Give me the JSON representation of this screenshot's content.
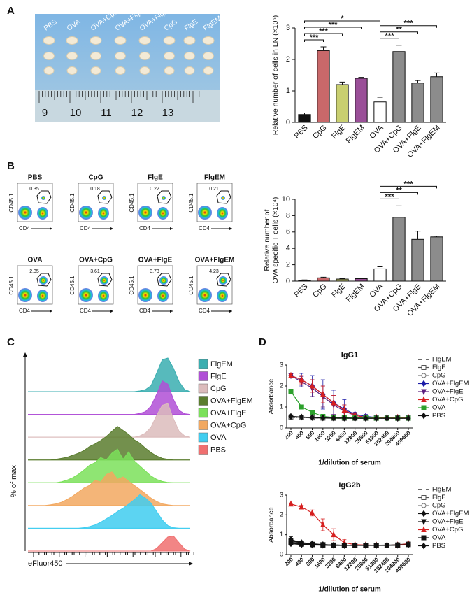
{
  "panel_labels": [
    "A",
    "B",
    "C",
    "D"
  ],
  "photo": {
    "labels": [
      "PBS",
      "OVA",
      "OVA+CpG",
      "OVA+FlgE",
      "OVA+FlgEM",
      "CpG",
      "FlgE",
      "FlgEM"
    ],
    "ruler": [
      "9",
      "10",
      "11",
      "12",
      "13"
    ]
  },
  "flow": {
    "y_label": "CD45.1",
    "x_label": "CD4",
    "plots": [
      {
        "title": "PBS",
        "percent": 0.35
      },
      {
        "title": "CpG",
        "percent": 0.18
      },
      {
        "title": "FlgE",
        "percent": 0.22
      },
      {
        "title": "FlgEM",
        "percent": 0.21
      },
      {
        "title": "OVA",
        "percent": 2.35
      },
      {
        "title": "OVA+CpG",
        "percent": 3.61
      },
      {
        "title": "OVA+FlgE",
        "percent": 3.73
      },
      {
        "title": "OVA+FlgEM",
        "percent": 4.23
      }
    ]
  },
  "chart_data": [
    {
      "type": "bar",
      "y_label": [
        "Relative number of cells in LN (×10⁶)"
      ],
      "categories": [
        "PBS",
        "CpG",
        "FlgE",
        "FlgEM",
        "OVA",
        "OVA+CpG",
        "OVA+FlgE",
        "OVA+FlgEM"
      ],
      "values": [
        0.25,
        2.28,
        1.2,
        1.4,
        0.65,
        2.25,
        1.25,
        1.45
      ],
      "errors": [
        0.05,
        0.12,
        0.08,
        0.03,
        0.15,
        0.2,
        0.08,
        0.12
      ],
      "colors": [
        "#111111",
        "#c9686a",
        "#c9cf70",
        "#9a4f98",
        "#ffffff",
        "#8c8c8c",
        "#8c8c8c",
        "#8c8c8c"
      ],
      "ylim": [
        0,
        3
      ],
      "yticks": [
        0,
        1,
        2,
        3
      ],
      "comparisons": [
        {
          "from": 0,
          "to": 1,
          "label": "***"
        },
        {
          "from": 0,
          "to": 2,
          "label": "***"
        },
        {
          "from": 0,
          "to": 3,
          "label": "***"
        },
        {
          "from": 0,
          "to": 4,
          "label": "*"
        },
        {
          "from": 4,
          "to": 5,
          "label": "***"
        },
        {
          "from": 4,
          "to": 6,
          "label": "**"
        },
        {
          "from": 4,
          "to": 7,
          "label": "***"
        }
      ]
    },
    {
      "type": "bar",
      "y_label": [
        "Relative number of",
        "OVA specific T cells (×10⁴)"
      ],
      "categories": [
        "PBS",
        "CpG",
        "FlgE",
        "FlgEM",
        "OVA",
        "OVA+CpG",
        "OVA+FlgE",
        "OVA+FlgEM"
      ],
      "values": [
        0.1,
        0.4,
        0.25,
        0.3,
        1.5,
        7.8,
        5.1,
        5.4
      ],
      "errors": [
        0.05,
        0.08,
        0.05,
        0.05,
        0.25,
        1.4,
        1.0,
        0.1
      ],
      "colors": [
        "#111111",
        "#c9686a",
        "#c9cf70",
        "#9a4f98",
        "#ffffff",
        "#8c8c8c",
        "#8c8c8c",
        "#8c8c8c"
      ],
      "ylim": [
        0,
        10
      ],
      "yticks": [
        0,
        2,
        4,
        6,
        8,
        10
      ],
      "comparisons": [
        {
          "from": 4,
          "to": 5,
          "label": "***"
        },
        {
          "from": 4,
          "to": 6,
          "label": "**"
        },
        {
          "from": 4,
          "to": 7,
          "label": "***"
        }
      ]
    },
    {
      "type": "density",
      "y_label": "% of max",
      "x_label": "eFluor450",
      "ylim": [
        0,
        100
      ],
      "series": [
        {
          "name": "FlgEM",
          "color": "#3aaeb0",
          "values": [
            0,
            0,
            0,
            0,
            0,
            0,
            0,
            0,
            0,
            0,
            0,
            0,
            0,
            0,
            0,
            0,
            0,
            0,
            0,
            0,
            2,
            6,
            18,
            55,
            95,
            100,
            70,
            30,
            6,
            0
          ]
        },
        {
          "name": "FlgE",
          "color": "#b04fd6",
          "values": [
            0,
            0,
            0,
            0,
            0,
            0,
            0,
            0,
            0,
            0,
            0,
            0,
            0,
            0,
            0,
            0,
            0,
            0,
            0,
            0,
            3,
            8,
            25,
            60,
            100,
            90,
            45,
            12,
            2,
            0
          ]
        },
        {
          "name": "CpG",
          "color": "#dcbcbc",
          "values": [
            0,
            0,
            0,
            0,
            0,
            0,
            0,
            0,
            0,
            0,
            0,
            0,
            0,
            0,
            0,
            0,
            0,
            0,
            0,
            0,
            4,
            12,
            30,
            65,
            95,
            100,
            55,
            18,
            4,
            0
          ]
        },
        {
          "name": "OVA+FlgEM",
          "color": "#5a7d2e",
          "values": [
            0,
            0,
            0,
            0,
            0,
            2,
            5,
            8,
            14,
            20,
            28,
            40,
            48,
            58,
            70,
            85,
            100,
            88,
            76,
            60,
            50,
            35,
            22,
            12,
            5,
            2,
            0,
            0,
            0,
            0
          ]
        },
        {
          "name": "OVA+FlgE",
          "color": "#7be05a",
          "values": [
            0,
            0,
            0,
            0,
            0,
            0,
            3,
            8,
            15,
            25,
            38,
            52,
            60,
            75,
            68,
            88,
            100,
            70,
            92,
            65,
            50,
            35,
            20,
            10,
            4,
            1,
            0,
            0,
            0,
            0
          ]
        },
        {
          "name": "OVA+CpG",
          "color": "#f2a860",
          "values": [
            0,
            0,
            0,
            0,
            2,
            5,
            10,
            18,
            28,
            40,
            52,
            60,
            75,
            70,
            92,
            100,
            78,
            85,
            72,
            60,
            48,
            35,
            22,
            12,
            5,
            2,
            0,
            0,
            0,
            0
          ]
        },
        {
          "name": "OVA",
          "color": "#3fcdf0",
          "values": [
            0,
            0,
            0,
            0,
            0,
            0,
            0,
            0,
            0,
            0,
            2,
            5,
            10,
            18,
            28,
            38,
            50,
            60,
            72,
            85,
            100,
            90,
            75,
            50,
            25,
            8,
            2,
            0,
            0,
            0
          ]
        },
        {
          "name": "PBS",
          "color": "#f07070",
          "values": [
            0,
            0,
            0,
            0,
            0,
            0,
            0,
            0,
            0,
            0,
            0,
            0,
            0,
            0,
            0,
            0,
            0,
            0,
            0,
            0,
            0,
            0,
            0,
            8,
            25,
            42,
            45,
            25,
            6,
            0
          ]
        }
      ]
    },
    {
      "type": "line",
      "title": "IgG1",
      "y_label": "Absorbance",
      "x_label": "1/dilution of serum",
      "xscale": "log",
      "x": [
        200,
        400,
        800,
        1600,
        3200,
        6400,
        12800,
        25600,
        51200,
        102400,
        204800,
        409600
      ],
      "xlim": [
        200,
        409600
      ],
      "xticks": [
        200,
        400,
        800,
        1600,
        3200,
        6400,
        12800,
        25600,
        51200,
        102400,
        204800,
        409600
      ],
      "ylim": [
        0,
        3
      ],
      "yticks": [
        0,
        1,
        2,
        3
      ],
      "series": [
        {
          "name": "FlgEM",
          "color": "#111111",
          "marker": "none",
          "dash": "dashdot",
          "values": [
            0.5,
            0.5,
            0.48,
            0.47,
            0.47,
            0.46,
            0.46,
            0.46,
            0.46,
            0.46,
            0.46,
            0.46
          ]
        },
        {
          "name": "FlgE",
          "color": "#555555",
          "marker": "square-open",
          "values": [
            0.52,
            0.5,
            0.48,
            0.47,
            0.46,
            0.46,
            0.46,
            0.46,
            0.46,
            0.46,
            0.46,
            0.46
          ]
        },
        {
          "name": "CpG",
          "color": "#777777",
          "marker": "circle-open",
          "values": [
            0.55,
            0.52,
            0.5,
            0.48,
            0.47,
            0.46,
            0.46,
            0.46,
            0.46,
            0.46,
            0.46,
            0.46
          ]
        },
        {
          "name": "OVA+FlgEM",
          "color": "#1c1ca8",
          "marker": "diamond",
          "values": [
            2.5,
            2.3,
            2.0,
            1.6,
            1.2,
            0.9,
            0.65,
            0.55,
            0.5,
            0.5,
            0.5,
            0.5
          ],
          "errors": [
            0.05,
            0.3,
            0.5,
            0.7,
            0.6,
            0.45,
            0.2,
            0.1,
            0.05,
            0.05,
            0.05,
            0.05
          ]
        },
        {
          "name": "OVA+FlgE",
          "color": "#5b1f7e",
          "marker": "triangle-down",
          "values": [
            2.5,
            2.2,
            1.9,
            1.5,
            1.1,
            0.8,
            0.6,
            0.5,
            0.5,
            0.5,
            0.5,
            0.5
          ],
          "errors": [
            0.05,
            0.25,
            0.4,
            0.5,
            0.45,
            0.3,
            0.15,
            0.05,
            0.05,
            0.05,
            0.05,
            0.05
          ]
        },
        {
          "name": "OVA+CpG",
          "color": "#d62020",
          "marker": "triangle",
          "values": [
            2.5,
            2.3,
            2.0,
            1.6,
            1.2,
            0.85,
            0.6,
            0.5,
            0.5,
            0.5,
            0.5,
            0.5
          ],
          "errors": [
            0.05,
            0.2,
            0.3,
            0.4,
            0.35,
            0.25,
            0.1,
            0.05,
            0.05,
            0.05,
            0.05,
            0.05
          ]
        },
        {
          "name": "OVA",
          "color": "#2ca02c",
          "marker": "square",
          "values": [
            1.75,
            1.0,
            0.75,
            0.55,
            0.5,
            0.5,
            0.48,
            0.48,
            0.47,
            0.47,
            0.47,
            0.47
          ],
          "errors": [
            0.1,
            0.1,
            0.08,
            0.05,
            0.05,
            0.05,
            0.05,
            0.05,
            0.05,
            0.05,
            0.05,
            0.05
          ]
        },
        {
          "name": "PBS",
          "color": "#111111",
          "marker": "diamond",
          "values": [
            0.55,
            0.52,
            0.5,
            0.48,
            0.47,
            0.47,
            0.46,
            0.46,
            0.46,
            0.46,
            0.46,
            0.46
          ]
        }
      ]
    },
    {
      "type": "line",
      "title": "IgG2b",
      "y_label": "Absorbance",
      "x_label": "1/dilution of serum",
      "xscale": "log",
      "x": [
        200,
        400,
        800,
        1600,
        3200,
        6400,
        12800,
        25600,
        51200,
        102400,
        204800,
        409600
      ],
      "xlim": [
        200,
        409600
      ],
      "xticks": [
        200,
        400,
        800,
        1600,
        3200,
        6400,
        12800,
        25600,
        51200,
        102400,
        204800,
        409600
      ],
      "ylim": [
        0,
        3
      ],
      "yticks": [
        0,
        1,
        2,
        3
      ],
      "series": [
        {
          "name": "FlgEM",
          "color": "#111111",
          "marker": "none",
          "dash": "dashdot",
          "values": [
            0.6,
            0.55,
            0.52,
            0.5,
            0.48,
            0.47,
            0.47,
            0.47,
            0.47,
            0.47,
            0.48,
            0.5
          ]
        },
        {
          "name": "FlgE",
          "color": "#555555",
          "marker": "square-open",
          "values": [
            0.65,
            0.55,
            0.5,
            0.48,
            0.47,
            0.47,
            0.47,
            0.47,
            0.47,
            0.47,
            0.48,
            0.52
          ]
        },
        {
          "name": "CpG",
          "color": "#777777",
          "marker": "circle-open",
          "values": [
            0.7,
            0.6,
            0.52,
            0.5,
            0.48,
            0.47,
            0.47,
            0.47,
            0.47,
            0.48,
            0.5,
            0.55
          ]
        },
        {
          "name": "OVA+FlgEM",
          "color": "#111111",
          "marker": "diamond",
          "values": [
            0.75,
            0.6,
            0.55,
            0.5,
            0.48,
            0.47,
            0.47,
            0.47,
            0.47,
            0.47,
            0.48,
            0.5
          ],
          "errors": [
            0.15,
            0.08,
            0.05,
            0.05,
            0.05,
            0.05,
            0.05,
            0.05,
            0.05,
            0.05,
            0.05,
            0.05
          ]
        },
        {
          "name": "OVA+FlgE",
          "color": "#111111",
          "marker": "triangle-down",
          "values": [
            0.7,
            0.58,
            0.52,
            0.5,
            0.48,
            0.47,
            0.47,
            0.47,
            0.47,
            0.47,
            0.48,
            0.52
          ]
        },
        {
          "name": "OVA+CpG",
          "color": "#d62020",
          "marker": "triangle",
          "values": [
            2.55,
            2.4,
            2.1,
            1.5,
            1.0,
            0.6,
            0.5,
            0.48,
            0.47,
            0.47,
            0.48,
            0.55
          ],
          "errors": [
            0.03,
            0.08,
            0.15,
            0.3,
            0.3,
            0.15,
            0.08,
            0.05,
            0.05,
            0.05,
            0.05,
            0.05
          ]
        },
        {
          "name": "OVA",
          "color": "#111111",
          "marker": "square",
          "values": [
            0.6,
            0.52,
            0.5,
            0.48,
            0.47,
            0.47,
            0.47,
            0.47,
            0.47,
            0.47,
            0.48,
            0.5
          ]
        },
        {
          "name": "PBS",
          "color": "#111111",
          "marker": "diamond",
          "values": [
            0.55,
            0.5,
            0.48,
            0.47,
            0.46,
            0.46,
            0.46,
            0.46,
            0.46,
            0.46,
            0.47,
            0.5
          ]
        }
      ]
    }
  ]
}
